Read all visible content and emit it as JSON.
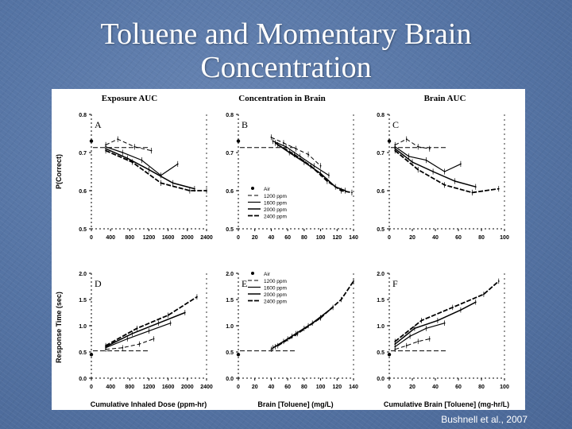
{
  "slide": {
    "title_line1": "Toluene and Momentary Brain",
    "title_line2": "Concentration",
    "credit": "Bushnell et al.,  2007"
  },
  "colors": {
    "background": "#5574a4",
    "title": "#ffffff",
    "figure_bg": "#ffffff",
    "ink": "#000000"
  },
  "figure": {
    "col_titles": [
      "Exposure AUC",
      "Concentration in Brain",
      "Brain AUC"
    ],
    "row_ylabels": [
      "P(Correct)",
      "Response Time (sec)"
    ],
    "col_xlabels": [
      "Cumulative Inhaled Dose (ppm-hr)",
      "Brain [Toluene] (mg/L)",
      "Cumulative Brain [Toluene] (mg-hr/L)"
    ],
    "legend_title": "Air",
    "legend_entries": [
      "1200 ppm",
      "1600 ppm",
      "2000 ppm",
      "2400 ppm"
    ]
  },
  "chart_data": [
    {
      "type": "line",
      "panel": "A",
      "ylabel": "P(Correct)",
      "xlabel": "",
      "xlim": [
        0,
        2400
      ],
      "ylim": [
        0.5,
        0.8
      ],
      "x_ticks": [
        "0",
        "400",
        "800",
        "1200",
        "1600",
        "2000",
        "2400"
      ],
      "y_ticks": [
        "0.5",
        "0.6",
        "0.7",
        "0.8"
      ],
      "air": {
        "x": [
          0
        ],
        "y": [
          0.73
        ]
      },
      "reference": 0.713,
      "series": [
        {
          "x": [
            300,
            550,
            900,
            1250
          ],
          "y": [
            0.72,
            0.735,
            0.715,
            0.705
          ]
        },
        {
          "x": [
            300,
            650,
            1050,
            1450,
            1800
          ],
          "y": [
            0.715,
            0.7,
            0.68,
            0.64,
            0.67
          ]
        },
        {
          "x": [
            300,
            750,
            1200,
            1700,
            2150
          ],
          "y": [
            0.71,
            0.685,
            0.655,
            0.62,
            0.605
          ]
        },
        {
          "x": [
            300,
            850,
            1450,
            2050,
            2400
          ],
          "y": [
            0.705,
            0.675,
            0.62,
            0.6,
            0.6
          ]
        }
      ]
    },
    {
      "type": "line",
      "panel": "B",
      "ylabel": "",
      "xlabel": "",
      "xlim": [
        0,
        140
      ],
      "ylim": [
        0.5,
        0.8
      ],
      "x_ticks": [
        "0",
        "20",
        "40",
        "60",
        "80",
        "100",
        "120",
        "140"
      ],
      "y_ticks": [
        "0.5",
        "0.6",
        "0.7",
        "0.8"
      ],
      "air": {
        "x": [
          0
        ],
        "y": [
          0.73
        ]
      },
      "reference": 0.713,
      "series": [
        {
          "x": [
            40,
            55,
            70,
            85,
            100
          ],
          "y": [
            0.74,
            0.725,
            0.71,
            0.695,
            0.665
          ]
        },
        {
          "x": [
            42,
            58,
            75,
            92,
            110
          ],
          "y": [
            0.73,
            0.715,
            0.69,
            0.665,
            0.64
          ]
        },
        {
          "x": [
            45,
            62,
            80,
            100,
            118,
            130
          ],
          "y": [
            0.725,
            0.7,
            0.675,
            0.645,
            0.61,
            0.6
          ]
        },
        {
          "x": [
            48,
            68,
            88,
            108,
            125,
            138
          ],
          "y": [
            0.72,
            0.695,
            0.665,
            0.625,
            0.6,
            0.595
          ]
        }
      ]
    },
    {
      "type": "line",
      "panel": "C",
      "ylabel": "",
      "xlabel": "",
      "xlim": [
        0,
        100
      ],
      "ylim": [
        0.5,
        0.8
      ],
      "x_ticks": [
        "0",
        "20",
        "40",
        "60",
        "80",
        "100"
      ],
      "y_ticks": [
        "0.5",
        "0.6",
        "0.7",
        "0.8"
      ],
      "air": {
        "x": [
          0
        ],
        "y": [
          0.73
        ]
      },
      "reference": 0.713,
      "series": [
        {
          "x": [
            5,
            15,
            25,
            35
          ],
          "y": [
            0.72,
            0.735,
            0.715,
            0.71
          ]
        },
        {
          "x": [
            5,
            17,
            32,
            48,
            62
          ],
          "y": [
            0.715,
            0.69,
            0.68,
            0.65,
            0.67
          ]
        },
        {
          "x": [
            5,
            20,
            38,
            57,
            75
          ],
          "y": [
            0.71,
            0.675,
            0.65,
            0.625,
            0.61
          ]
        },
        {
          "x": [
            5,
            25,
            48,
            72,
            95
          ],
          "y": [
            0.705,
            0.655,
            0.615,
            0.595,
            0.605
          ]
        }
      ]
    },
    {
      "type": "line",
      "panel": "D",
      "ylabel": "Response Time (sec)",
      "xlabel": "Cumulative Inhaled Dose (ppm-hr)",
      "xlim": [
        0,
        2400
      ],
      "ylim": [
        0.0,
        2.0
      ],
      "x_ticks": [
        "0",
        "400",
        "800",
        "1200",
        "1600",
        "2000",
        "2400"
      ],
      "y_ticks": [
        "0.0",
        "0.5",
        "1.0",
        "1.5",
        "2.0"
      ],
      "air": {
        "x": [
          0
        ],
        "y": [
          0.45
        ]
      },
      "reference": 0.52,
      "series": [
        {
          "x": [
            300,
            650,
            1000,
            1300
          ],
          "y": [
            0.55,
            0.58,
            0.65,
            0.75
          ]
        },
        {
          "x": [
            300,
            750,
            1200,
            1650
          ],
          "y": [
            0.58,
            0.75,
            0.9,
            1.05
          ]
        },
        {
          "x": [
            300,
            850,
            1400,
            1950
          ],
          "y": [
            0.6,
            0.85,
            1.05,
            1.25
          ]
        },
        {
          "x": [
            300,
            950,
            1600,
            2200
          ],
          "y": [
            0.62,
            0.95,
            1.2,
            1.55
          ]
        }
      ]
    },
    {
      "type": "line",
      "panel": "E",
      "ylabel": "",
      "xlabel": "Brain [Toluene] (mg/L)",
      "xlim": [
        0,
        140
      ],
      "ylim": [
        0.0,
        2.0
      ],
      "x_ticks": [
        "0",
        "20",
        "40",
        "60",
        "80",
        "100",
        "120",
        "140"
      ],
      "y_ticks": [
        "0.0",
        "0.5",
        "1.0",
        "1.5",
        "2.0"
      ],
      "air": {
        "x": [
          0
        ],
        "y": [
          0.45
        ]
      },
      "reference": 0.52,
      "series": [
        {
          "x": [
            40,
            55,
            70,
            85
          ],
          "y": [
            0.55,
            0.7,
            0.85,
            1.0
          ]
        },
        {
          "x": [
            42,
            60,
            80,
            100
          ],
          "y": [
            0.58,
            0.75,
            0.95,
            1.15
          ]
        },
        {
          "x": [
            45,
            65,
            90,
            115
          ],
          "y": [
            0.6,
            0.8,
            1.05,
            1.35
          ]
        },
        {
          "x": [
            48,
            72,
            100,
            125,
            140
          ],
          "y": [
            0.62,
            0.85,
            1.15,
            1.5,
            1.85
          ]
        }
      ]
    },
    {
      "type": "line",
      "panel": "F",
      "ylabel": "",
      "xlabel": "Cumulative Brain [Toluene] (mg-hr/L)",
      "xlim": [
        0,
        100
      ],
      "ylim": [
        0.0,
        2.0
      ],
      "x_ticks": [
        "0",
        "20",
        "40",
        "60",
        "80",
        "100"
      ],
      "y_ticks": [
        "0.0",
        "0.5",
        "1.0",
        "1.5",
        "2.0"
      ],
      "air": {
        "x": [
          0
        ],
        "y": [
          0.45
        ]
      },
      "reference": 0.52,
      "series": [
        {
          "x": [
            5,
            15,
            25,
            35
          ],
          "y": [
            0.55,
            0.62,
            0.7,
            0.75
          ]
        },
        {
          "x": [
            5,
            18,
            32,
            48
          ],
          "y": [
            0.6,
            0.8,
            0.95,
            1.05
          ]
        },
        {
          "x": [
            5,
            22,
            42,
            62,
            75
          ],
          "y": [
            0.65,
            0.95,
            1.1,
            1.3,
            1.45
          ]
        },
        {
          "x": [
            5,
            28,
            55,
            82,
            95
          ],
          "y": [
            0.7,
            1.1,
            1.35,
            1.6,
            1.85
          ]
        }
      ]
    }
  ]
}
